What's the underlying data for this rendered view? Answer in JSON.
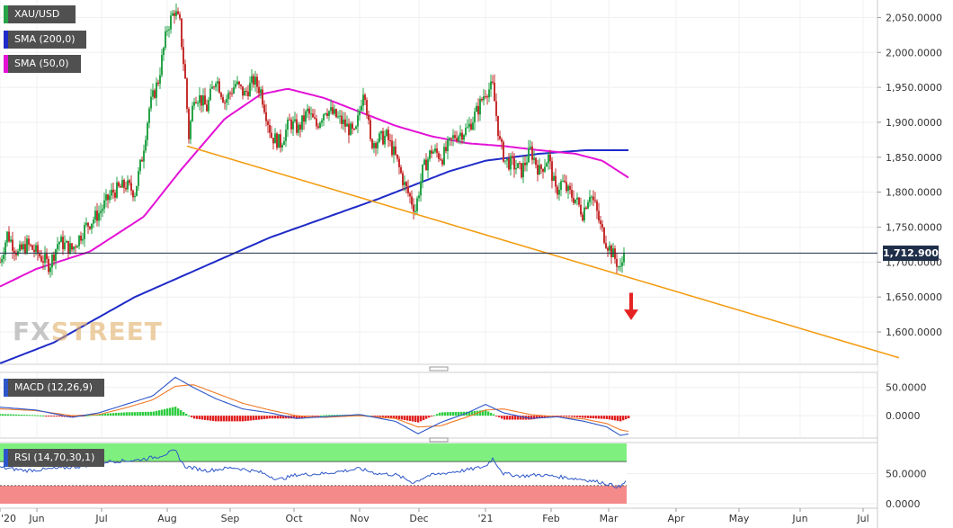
{
  "badges": {
    "instrument": "XAU/USD",
    "sma200": "SMA (200,0)",
    "sma50": "SMA (50,0)",
    "macd": "MACD (12,26,9)",
    "rsi": "RSI (14,70,30,1)"
  },
  "watermark": {
    "part1": "FX",
    "part2": "STREET"
  },
  "colors": {
    "up": "#27a348",
    "down": "#c62f2f",
    "sma200": "#1f2bc8",
    "sma50": "#e312d6",
    "trendline": "#f39c12",
    "macd_line": "#2d56c9",
    "signal_line": "#f07b2a",
    "rsi_line": "#2d56c9",
    "rsi_overbought": "#7ff07f",
    "rsi_oversold": "#f58a8a",
    "arrow": "#e52222"
  },
  "chart_data": [
    {
      "type": "candlestick",
      "name": "main",
      "y_ticks": [
        "1,600.0000",
        "1,650.0000",
        "1,700.0000",
        "1,750.0000",
        "1,800.0000",
        "1,850.0000",
        "1,900.0000",
        "1,950.0000",
        "2,000.0000",
        "2,050.0000"
      ],
      "y_tick_values": [
        1600,
        1650,
        1700,
        1750,
        1800,
        1850,
        1900,
        1950,
        2000,
        2050
      ],
      "ylim": [
        1555,
        2075
      ],
      "x_labels": [
        "'20",
        "Jun",
        "Jul",
        "Aug",
        "Sep",
        "Oct",
        "Nov",
        "Dec",
        "'21",
        "Feb",
        "Mar",
        "Apr",
        "May",
        "Jun",
        "Jul"
      ],
      "x_label_days": [
        0,
        41,
        113,
        186,
        256,
        327,
        400,
        466,
        540,
        613,
        677,
        752,
        822,
        890,
        960
      ],
      "last_price": "1,712.9000",
      "last_price_value": 1712.9,
      "close_anchors": [
        [
          0,
          1700
        ],
        [
          8,
          1740
        ],
        [
          20,
          1712
        ],
        [
          30,
          1725
        ],
        [
          42,
          1712
        ],
        [
          55,
          1695
        ],
        [
          65,
          1730
        ],
        [
          80,
          1718
        ],
        [
          95,
          1750
        ],
        [
          110,
          1770
        ],
        [
          125,
          1800
        ],
        [
          140,
          1810
        ],
        [
          150,
          1800
        ],
        [
          158,
          1850
        ],
        [
          166,
          1920
        ],
        [
          176,
          1960
        ],
        [
          186,
          2035
        ],
        [
          194,
          2060
        ],
        [
          200,
          2040
        ],
        [
          206,
          1960
        ],
        [
          210,
          1880
        ],
        [
          216,
          1940
        ],
        [
          222,
          1935
        ],
        [
          230,
          1920
        ],
        [
          240,
          1965
        ],
        [
          250,
          1930
        ],
        [
          262,
          1955
        ],
        [
          272,
          1940
        ],
        [
          282,
          1960
        ],
        [
          290,
          1945
        ],
        [
          302,
          1880
        ],
        [
          312,
          1870
        ],
        [
          322,
          1900
        ],
        [
          332,
          1890
        ],
        [
          342,
          1915
        ],
        [
          352,
          1895
        ],
        [
          362,
          1920
        ],
        [
          372,
          1910
        ],
        [
          385,
          1895
        ],
        [
          395,
          1880
        ],
        [
          405,
          1955
        ],
        [
          412,
          1870
        ],
        [
          420,
          1875
        ],
        [
          430,
          1880
        ],
        [
          440,
          1850
        ],
        [
          450,
          1810
        ],
        [
          462,
          1775
        ],
        [
          470,
          1830
        ],
        [
          480,
          1860
        ],
        [
          492,
          1850
        ],
        [
          505,
          1880
        ],
        [
          520,
          1890
        ],
        [
          532,
          1920
        ],
        [
          540,
          1945
        ],
        [
          548,
          1950
        ],
        [
          556,
          1870
        ],
        [
          562,
          1845
        ],
        [
          570,
          1840
        ],
        [
          580,
          1830
        ],
        [
          590,
          1860
        ],
        [
          600,
          1830
        ],
        [
          610,
          1850
        ],
        [
          618,
          1800
        ],
        [
          625,
          1815
        ],
        [
          632,
          1800
        ],
        [
          640,
          1790
        ],
        [
          648,
          1770
        ],
        [
          656,
          1800
        ],
        [
          662,
          1780
        ],
        [
          668,
          1750
        ],
        [
          674,
          1730
        ],
        [
          680,
          1715
        ],
        [
          686,
          1700
        ],
        [
          690,
          1688
        ],
        [
          694,
          1712
        ]
      ],
      "sma200_anchors": [
        [
          0,
          1555
        ],
        [
          60,
          1585
        ],
        [
          150,
          1650
        ],
        [
          300,
          1735
        ],
        [
          420,
          1790
        ],
        [
          500,
          1830
        ],
        [
          540,
          1845
        ],
        [
          600,
          1855
        ],
        [
          650,
          1860
        ],
        [
          700,
          1860
        ]
      ],
      "sma50_anchors": [
        [
          0,
          1665
        ],
        [
          40,
          1690
        ],
        [
          100,
          1715
        ],
        [
          160,
          1765
        ],
        [
          200,
          1830
        ],
        [
          250,
          1905
        ],
        [
          290,
          1940
        ],
        [
          320,
          1948
        ],
        [
          360,
          1935
        ],
        [
          400,
          1915
        ],
        [
          440,
          1895
        ],
        [
          480,
          1880
        ],
        [
          520,
          1870
        ],
        [
          560,
          1866
        ],
        [
          600,
          1860
        ],
        [
          640,
          1855
        ],
        [
          670,
          1845
        ],
        [
          700,
          1820
        ]
      ],
      "trendline": {
        "start": [
          208,
          1866
        ],
        "end": [
          1000,
          1563
        ]
      },
      "annotation": "down-arrow"
    },
    {
      "type": "histogram_line",
      "name": "macd",
      "y_ticks": [
        "50.0000",
        "0.0000"
      ],
      "y_tick_values": [
        50,
        0
      ],
      "ylim": [
        -38,
        75
      ],
      "macd_anchors": [
        [
          0,
          15
        ],
        [
          40,
          10
        ],
        [
          80,
          -3
        ],
        [
          110,
          5
        ],
        [
          140,
          20
        ],
        [
          170,
          35
        ],
        [
          195,
          68
        ],
        [
          215,
          50
        ],
        [
          240,
          30
        ],
        [
          270,
          12
        ],
        [
          300,
          5
        ],
        [
          330,
          -5
        ],
        [
          360,
          -2
        ],
        [
          400,
          2
        ],
        [
          440,
          -10
        ],
        [
          465,
          -32
        ],
        [
          490,
          -12
        ],
        [
          520,
          5
        ],
        [
          540,
          20
        ],
        [
          560,
          5
        ],
        [
          590,
          -5
        ],
        [
          620,
          -2
        ],
        [
          650,
          -10
        ],
        [
          675,
          -20
        ],
        [
          690,
          -35
        ],
        [
          700,
          -32
        ]
      ],
      "signal_anchors": [
        [
          0,
          12
        ],
        [
          40,
          9
        ],
        [
          80,
          0
        ],
        [
          110,
          2
        ],
        [
          140,
          14
        ],
        [
          170,
          28
        ],
        [
          195,
          52
        ],
        [
          215,
          55
        ],
        [
          240,
          40
        ],
        [
          270,
          22
        ],
        [
          300,
          10
        ],
        [
          330,
          0
        ],
        [
          360,
          -3
        ],
        [
          400,
          0
        ],
        [
          440,
          -5
        ],
        [
          465,
          -20
        ],
        [
          490,
          -18
        ],
        [
          520,
          -2
        ],
        [
          540,
          10
        ],
        [
          560,
          12
        ],
        [
          590,
          2
        ],
        [
          620,
          -2
        ],
        [
          650,
          -6
        ],
        [
          675,
          -14
        ],
        [
          690,
          -25
        ],
        [
          700,
          -28
        ]
      ]
    },
    {
      "type": "line",
      "name": "rsi",
      "y_ticks": [
        "50.0000",
        "0.0000"
      ],
      "y_tick_values": [
        50,
        0
      ],
      "ylim": [
        0,
        100
      ],
      "overbought": 70,
      "oversold": 30,
      "rsi_anchors": [
        [
          0,
          60
        ],
        [
          30,
          55
        ],
        [
          60,
          58
        ],
        [
          90,
          62
        ],
        [
          120,
          70
        ],
        [
          150,
          72
        ],
        [
          175,
          78
        ],
        [
          195,
          88
        ],
        [
          205,
          62
        ],
        [
          230,
          55
        ],
        [
          260,
          60
        ],
        [
          290,
          52
        ],
        [
          310,
          40
        ],
        [
          330,
          48
        ],
        [
          360,
          50
        ],
        [
          385,
          55
        ],
        [
          400,
          58
        ],
        [
          420,
          50
        ],
        [
          440,
          48
        ],
        [
          460,
          35
        ],
        [
          475,
          46
        ],
        [
          500,
          52
        ],
        [
          520,
          56
        ],
        [
          540,
          62
        ],
        [
          548,
          75
        ],
        [
          560,
          50
        ],
        [
          580,
          46
        ],
        [
          600,
          48
        ],
        [
          620,
          45
        ],
        [
          650,
          40
        ],
        [
          670,
          35
        ],
        [
          690,
          27
        ],
        [
          697,
          40
        ]
      ]
    }
  ]
}
